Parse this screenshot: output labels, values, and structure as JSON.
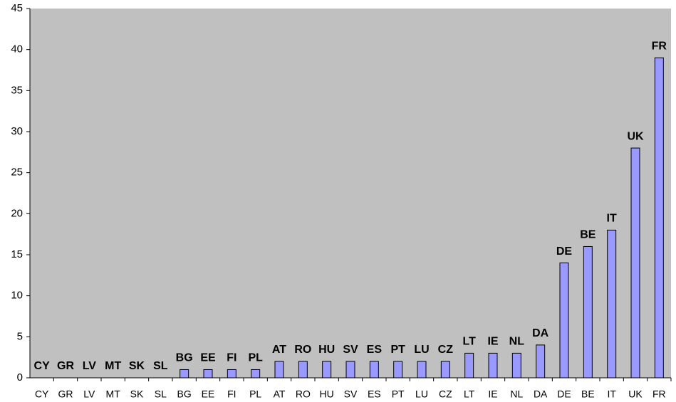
{
  "chart_data": {
    "type": "bar",
    "categories": [
      "CY",
      "GR",
      "LV",
      "MT",
      "SK",
      "SL",
      "BG",
      "EE",
      "FI",
      "PL",
      "AT",
      "RO",
      "HU",
      "SV",
      "ES",
      "PT",
      "LU",
      "CZ",
      "LT",
      "IE",
      "NL",
      "DA",
      "DE",
      "BE",
      "IT",
      "UK",
      "FR"
    ],
    "values": [
      0,
      0,
      0,
      0,
      0,
      0,
      1,
      1,
      1,
      1,
      2,
      2,
      2,
      2,
      2,
      2,
      2,
      2,
      3,
      3,
      3,
      4,
      14,
      16,
      18,
      28,
      39
    ],
    "color": "#9999ff",
    "ylim": [
      0,
      45
    ],
    "yticks": [
      0,
      5,
      10,
      15,
      20,
      25,
      30,
      35,
      40,
      45
    ],
    "grid": false
  }
}
